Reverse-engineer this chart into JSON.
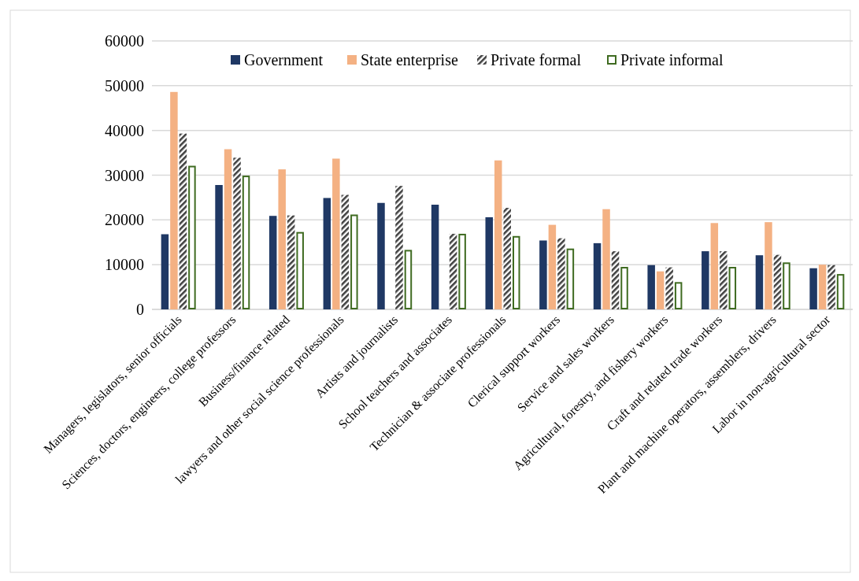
{
  "chart_data": {
    "type": "bar",
    "categories": [
      "Managers, legislators, senior officials",
      "Sciences, doctors, engineers, college professors",
      "Business/finance related",
      "lawyers and other social science professionals",
      "Artists and journalists",
      "School teachers and associates",
      "Technician & associate professionals",
      "Clerical support workers",
      "Service and sales workers",
      "Agricultural, forestry, and fishery workers",
      "Craft and related trade workers",
      "Plant and machine operators, assemblers, drivers",
      "Labor in non-agricultural sector"
    ],
    "series": [
      {
        "name": "Government",
        "color": "#1f3864",
        "values": [
          16800,
          27800,
          20900,
          24900,
          23800,
          23400,
          20600,
          15400,
          14800,
          9900,
          13000,
          12100,
          9200
        ]
      },
      {
        "name": "State enterprise",
        "color": "#f4b183",
        "values": [
          48600,
          35800,
          31300,
          33700,
          null,
          null,
          33300,
          18900,
          22400,
          8500,
          19300,
          19500,
          10000
        ]
      },
      {
        "name": "Private formal",
        "color": "#404040",
        "values": [
          39300,
          33900,
          21000,
          25600,
          27600,
          16900,
          22700,
          15900,
          13000,
          9400,
          13000,
          12200,
          9900
        ]
      },
      {
        "name": "Private informal",
        "color": "#3f6b21",
        "values": [
          32100,
          29900,
          17300,
          21200,
          13300,
          16900,
          16400,
          13600,
          9500,
          6100,
          9500,
          10500,
          7900
        ]
      }
    ],
    "ylim": [
      0,
      60000
    ],
    "yticks": [
      0,
      10000,
      20000,
      30000,
      40000,
      50000,
      60000
    ],
    "grid": "y",
    "legend": "top right"
  }
}
